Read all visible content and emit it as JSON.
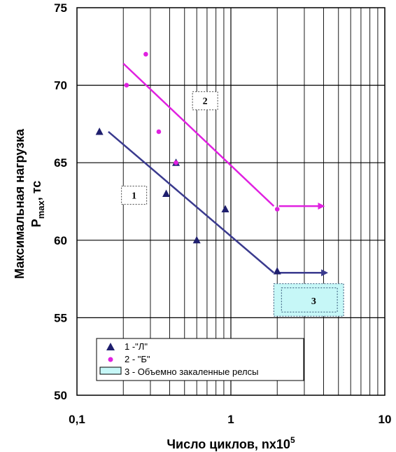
{
  "chart_data": {
    "type": "scatter",
    "x_scale": "log",
    "xlim": [
      0.1,
      10
    ],
    "ylim": [
      50,
      75
    ],
    "x_ticks": [
      {
        "value": 0.1,
        "label": "0,1"
      },
      {
        "value": 1,
        "label": "1"
      },
      {
        "value": 10,
        "label": "10"
      }
    ],
    "y_ticks": [
      {
        "value": 50,
        "label": "50"
      },
      {
        "value": 55,
        "label": "55"
      },
      {
        "value": 60,
        "label": "60"
      },
      {
        "value": 65,
        "label": "65"
      },
      {
        "value": 70,
        "label": "70"
      },
      {
        "value": 75,
        "label": "75"
      }
    ],
    "xlabel": "Число циклов, nx10",
    "xlabel_sup": "5",
    "ylabel_line1": "Максимальная нагрузка",
    "ylabel_main": "P",
    "ylabel_sub": "max",
    "ylabel_unit": ", тс",
    "grid": true,
    "legend_position": "bottom-left",
    "series": [
      {
        "name": "1 -\"Л\"",
        "marker": "triangle",
        "color": "#1f1f6e",
        "points": [
          [
            0.14,
            67
          ],
          [
            0.38,
            63
          ],
          [
            0.44,
            65
          ],
          [
            0.6,
            60
          ],
          [
            0.92,
            62
          ],
          [
            2.0,
            58
          ]
        ],
        "trend": {
          "from": [
            0.16,
            67
          ],
          "to": [
            1.9,
            57.9
          ],
          "color": "#3a3a8e"
        },
        "arrow": {
          "from": [
            2.05,
            57.9
          ],
          "to": [
            4.2,
            57.9
          ],
          "color": "#3a3a8e"
        }
      },
      {
        "name": "2 - \"Б\"",
        "marker": "circle",
        "color": "#e020e0",
        "points": [
          [
            0.21,
            70
          ],
          [
            0.28,
            72
          ],
          [
            0.34,
            67
          ],
          [
            0.44,
            65
          ],
          [
            2.0,
            62
          ]
        ],
        "trend": {
          "from": [
            0.2,
            71.4
          ],
          "to": [
            1.9,
            62.2
          ],
          "color": "#e020e0"
        },
        "arrow": {
          "from": [
            2.05,
            62.2
          ],
          "to": [
            4.0,
            62.2
          ],
          "color": "#e020e0"
        }
      },
      {
        "name": "3 - Объемно закаленные релсы",
        "marker": "box",
        "color": "#c6f7f7",
        "region": {
          "x": [
            1.9,
            5.4
          ],
          "y": [
            55.1,
            57.2
          ]
        }
      }
    ],
    "annotations": [
      {
        "text": "1",
        "x": 0.235,
        "y": 62.9
      },
      {
        "text": "2",
        "x": 0.68,
        "y": 69.0
      },
      {
        "text": "3",
        "x": 3.45,
        "y": 56.1
      }
    ]
  }
}
